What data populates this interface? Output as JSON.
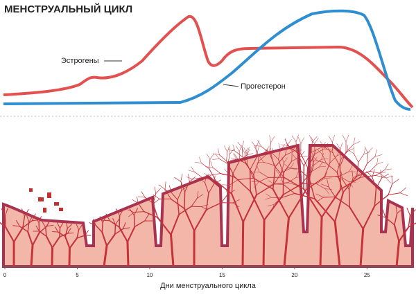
{
  "title": "МЕНСТРУАЛЬНЫЙ ЦИКЛ",
  "hormones": {
    "estrogen_label": "Эстрогены",
    "progesterone_label": "Прогестерон"
  },
  "axis": {
    "label": "Дни менструального цикла",
    "xlim": [
      0,
      28
    ],
    "xticks": [
      0,
      5,
      10,
      15,
      20,
      25
    ]
  }
}
